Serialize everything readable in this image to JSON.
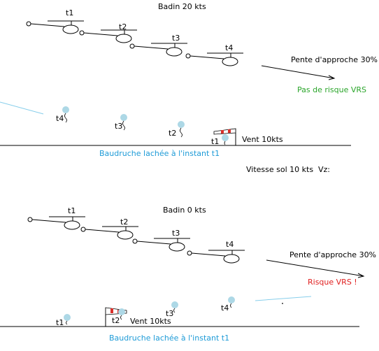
{
  "colors": {
    "ink": "#000000",
    "balloon": "#add8e6",
    "wind_line": "#87ceeb",
    "blue_text": "#1e9bd7",
    "green_text": "#2aa52a",
    "red_text": "#e02020",
    "sock_red": "#d9302a"
  },
  "top": {
    "airspeed": "Badin 20 kts",
    "heli_labels": [
      "t1",
      "t2",
      "t3",
      "t4"
    ],
    "approach_slope": "Pente d'approche 30%",
    "verdict": "Pas de risque VRS",
    "balloon_labels": [
      "t4",
      "t3",
      "t2",
      "t1"
    ],
    "wind": "Vent 10kts",
    "balloon_caption": "Baudruche lachée à l'instant t1"
  },
  "middle": {
    "ground_speed": "Vitesse sol 10 kts",
    "vz_label": "Vz:"
  },
  "bottom": {
    "airspeed": "Badin 0 kts",
    "heli_labels": [
      "t1",
      "t2",
      "t3",
      "t4"
    ],
    "approach_slope": "Pente d'approche 30%",
    "verdict": "Risque VRS !",
    "balloon_labels": [
      "t1",
      "t2",
      "t3",
      "t4"
    ],
    "wind": "Vent 10kts",
    "balloon_caption": "Baudruche lachée à l'instant t1"
  }
}
